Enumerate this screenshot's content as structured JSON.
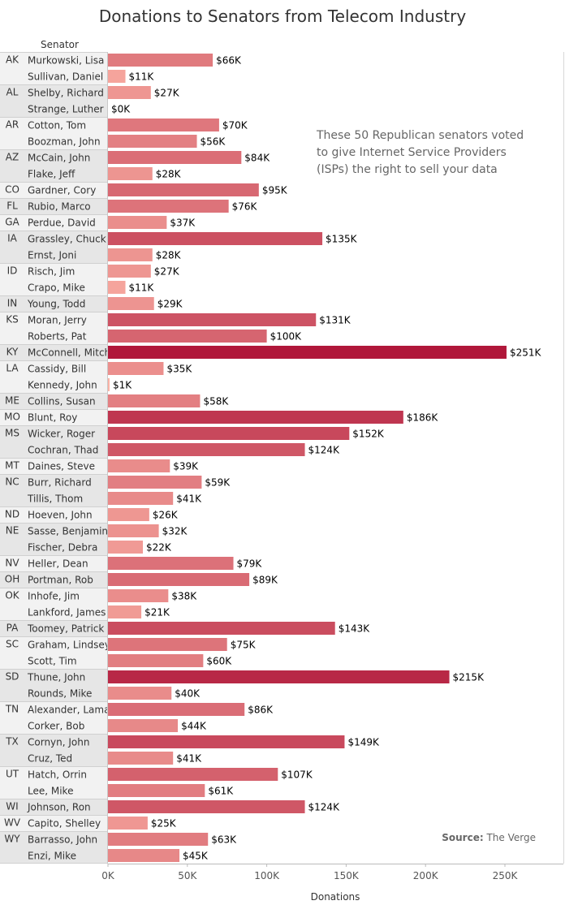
{
  "chart_data": {
    "type": "bar",
    "orientation": "horizontal",
    "title": "Donations to Senators from Telecom Industry",
    "row_header": "Senator",
    "xlabel": "Donations",
    "xlim": [
      0,
      280000
    ],
    "xticks": [
      {
        "value": 0,
        "label": "0K"
      },
      {
        "value": 50000,
        "label": "50K"
      },
      {
        "value": 100000,
        "label": "100K"
      },
      {
        "value": 150000,
        "label": "150K"
      },
      {
        "value": 200000,
        "label": "200K"
      },
      {
        "value": 250000,
        "label": "250K"
      }
    ],
    "annotation": "These 50 Republican senators voted to give Internet Service Providers (ISPs) the right to sell your data",
    "annotation_lines": [
      "These 50 Republican senators voted",
      "to give Internet Service Providers",
      "(ISPs) the right to sell your data"
    ],
    "source_label": "Source:",
    "source_value": " The Verge",
    "colors": {
      "low": "#fcb3a6",
      "high": "#b0173a"
    },
    "groups": [
      {
        "state": "AK",
        "senators": [
          {
            "name": "Murkowski, Lisa",
            "value": 66000,
            "label": "$66K"
          },
          {
            "name": "Sullivan, Daniel",
            "value": 11000,
            "label": "$11K"
          }
        ]
      },
      {
        "state": "AL",
        "senators": [
          {
            "name": "Shelby, Richard",
            "value": 27000,
            "label": "$27K"
          },
          {
            "name": "Strange, Luther",
            "value": 0,
            "label": "$0K"
          }
        ]
      },
      {
        "state": "AR",
        "senators": [
          {
            "name": "Cotton, Tom",
            "value": 70000,
            "label": "$70K"
          },
          {
            "name": "Boozman, John",
            "value": 56000,
            "label": "$56K"
          }
        ]
      },
      {
        "state": "AZ",
        "senators": [
          {
            "name": "McCain, John",
            "value": 84000,
            "label": "$84K"
          },
          {
            "name": "Flake, Jeff",
            "value": 28000,
            "label": "$28K"
          }
        ]
      },
      {
        "state": "CO",
        "senators": [
          {
            "name": "Gardner, Cory",
            "value": 95000,
            "label": "$95K"
          }
        ]
      },
      {
        "state": "FL",
        "senators": [
          {
            "name": "Rubio, Marco",
            "value": 76000,
            "label": "$76K"
          }
        ]
      },
      {
        "state": "GA",
        "senators": [
          {
            "name": "Perdue, David",
            "value": 37000,
            "label": "$37K"
          }
        ]
      },
      {
        "state": "IA",
        "senators": [
          {
            "name": "Grassley, Chuck",
            "value": 135000,
            "label": "$135K"
          },
          {
            "name": "Ernst, Joni",
            "value": 28000,
            "label": "$28K"
          }
        ]
      },
      {
        "state": "ID",
        "senators": [
          {
            "name": "Risch, Jim",
            "value": 27000,
            "label": "$27K"
          },
          {
            "name": "Crapo, Mike",
            "value": 11000,
            "label": "$11K"
          }
        ]
      },
      {
        "state": "IN",
        "senators": [
          {
            "name": "Young, Todd",
            "value": 29000,
            "label": "$29K"
          }
        ]
      },
      {
        "state": "KS",
        "senators": [
          {
            "name": "Moran, Jerry",
            "value": 131000,
            "label": "$131K"
          },
          {
            "name": "Roberts, Pat",
            "value": 100000,
            "label": "$100K"
          }
        ]
      },
      {
        "state": "KY",
        "senators": [
          {
            "name": "McConnell, Mitch",
            "value": 251000,
            "label": "$251K"
          }
        ]
      },
      {
        "state": "LA",
        "senators": [
          {
            "name": "Cassidy, Bill",
            "value": 35000,
            "label": "$35K"
          },
          {
            "name": "Kennedy, John",
            "value": 1000,
            "label": "$1K"
          }
        ]
      },
      {
        "state": "ME",
        "senators": [
          {
            "name": "Collins, Susan",
            "value": 58000,
            "label": "$58K"
          }
        ]
      },
      {
        "state": "MO",
        "senators": [
          {
            "name": "Blunt, Roy",
            "value": 186000,
            "label": "$186K"
          }
        ]
      },
      {
        "state": "MS",
        "senators": [
          {
            "name": "Wicker, Roger",
            "value": 152000,
            "label": "$152K"
          },
          {
            "name": "Cochran, Thad",
            "value": 124000,
            "label": "$124K"
          }
        ]
      },
      {
        "state": "MT",
        "senators": [
          {
            "name": "Daines, Steve",
            "value": 39000,
            "label": "$39K"
          }
        ]
      },
      {
        "state": "NC",
        "senators": [
          {
            "name": "Burr, Richard",
            "value": 59000,
            "label": "$59K"
          },
          {
            "name": "Tillis, Thom",
            "value": 41000,
            "label": "$41K"
          }
        ]
      },
      {
        "state": "ND",
        "senators": [
          {
            "name": "Hoeven, John",
            "value": 26000,
            "label": "$26K"
          }
        ]
      },
      {
        "state": "NE",
        "senators": [
          {
            "name": "Sasse, Benjamin",
            "value": 32000,
            "label": "$32K"
          },
          {
            "name": "Fischer, Debra",
            "value": 22000,
            "label": "$22K"
          }
        ]
      },
      {
        "state": "NV",
        "senators": [
          {
            "name": "Heller, Dean",
            "value": 79000,
            "label": "$79K"
          }
        ]
      },
      {
        "state": "OH",
        "senators": [
          {
            "name": "Portman, Rob",
            "value": 89000,
            "label": "$89K"
          }
        ]
      },
      {
        "state": "OK",
        "senators": [
          {
            "name": "Inhofe, Jim",
            "value": 38000,
            "label": "$38K"
          },
          {
            "name": "Lankford, James",
            "value": 21000,
            "label": "$21K"
          }
        ]
      },
      {
        "state": "PA",
        "senators": [
          {
            "name": "Toomey, Patrick",
            "value": 143000,
            "label": "$143K"
          }
        ]
      },
      {
        "state": "SC",
        "senators": [
          {
            "name": "Graham, Lindsey",
            "value": 75000,
            "label": "$75K"
          },
          {
            "name": "Scott, Tim",
            "value": 60000,
            "label": "$60K"
          }
        ]
      },
      {
        "state": "SD",
        "senators": [
          {
            "name": "Thune, John",
            "value": 215000,
            "label": "$215K"
          },
          {
            "name": "Rounds, Mike",
            "value": 40000,
            "label": "$40K"
          }
        ]
      },
      {
        "state": "TN",
        "senators": [
          {
            "name": "Alexander, Lamar",
            "value": 86000,
            "label": "$86K"
          },
          {
            "name": "Corker, Bob",
            "value": 44000,
            "label": "$44K"
          }
        ]
      },
      {
        "state": "TX",
        "senators": [
          {
            "name": "Cornyn, John",
            "value": 149000,
            "label": "$149K"
          },
          {
            "name": "Cruz, Ted",
            "value": 41000,
            "label": "$41K"
          }
        ]
      },
      {
        "state": "UT",
        "senators": [
          {
            "name": "Hatch, Orrin",
            "value": 107000,
            "label": "$107K"
          },
          {
            "name": "Lee, Mike",
            "value": 61000,
            "label": "$61K"
          }
        ]
      },
      {
        "state": "WI",
        "senators": [
          {
            "name": "Johnson, Ron",
            "value": 124000,
            "label": "$124K"
          }
        ]
      },
      {
        "state": "WV",
        "senators": [
          {
            "name": "Capito, Shelley",
            "value": 25000,
            "label": "$25K"
          }
        ]
      },
      {
        "state": "WY",
        "senators": [
          {
            "name": "Barrasso, John",
            "value": 63000,
            "label": "$63K"
          },
          {
            "name": "Enzi, Mike",
            "value": 45000,
            "label": "$45K"
          }
        ]
      }
    ]
  }
}
